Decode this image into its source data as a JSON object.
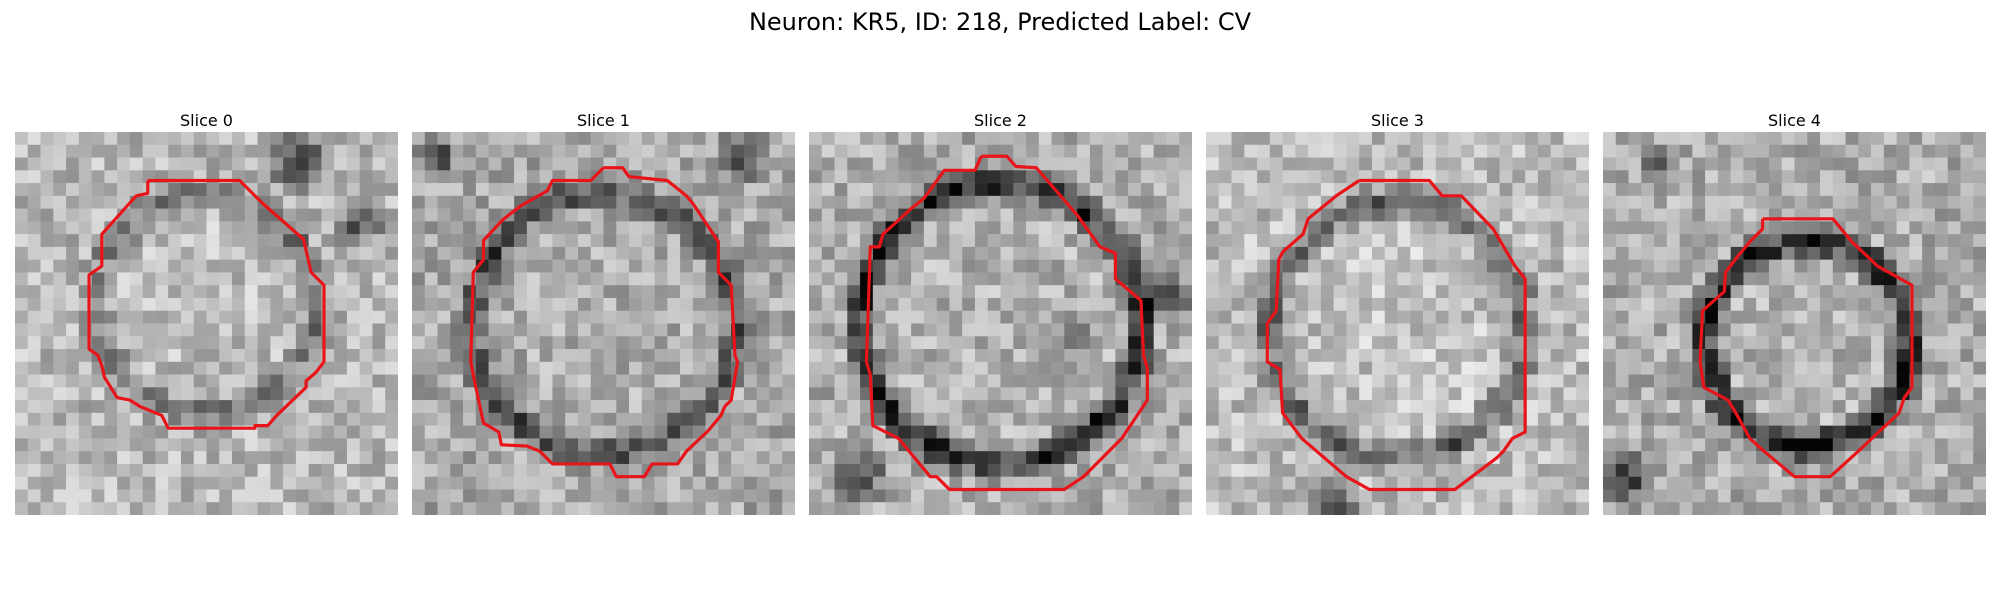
{
  "figure": {
    "title": "Neuron: KR5, ID: 218, Predicted Label: CV"
  },
  "panels": [
    {
      "title": "Slice 0",
      "outline_color": "#e8141a"
    },
    {
      "title": "Slice 1",
      "outline_color": "#e8141a"
    },
    {
      "title": "Slice 2",
      "outline_color": "#e8141a"
    },
    {
      "title": "Slice 3",
      "outline_color": "#e8141a"
    },
    {
      "title": "Slice 4",
      "outline_color": "#e8141a"
    }
  ]
}
